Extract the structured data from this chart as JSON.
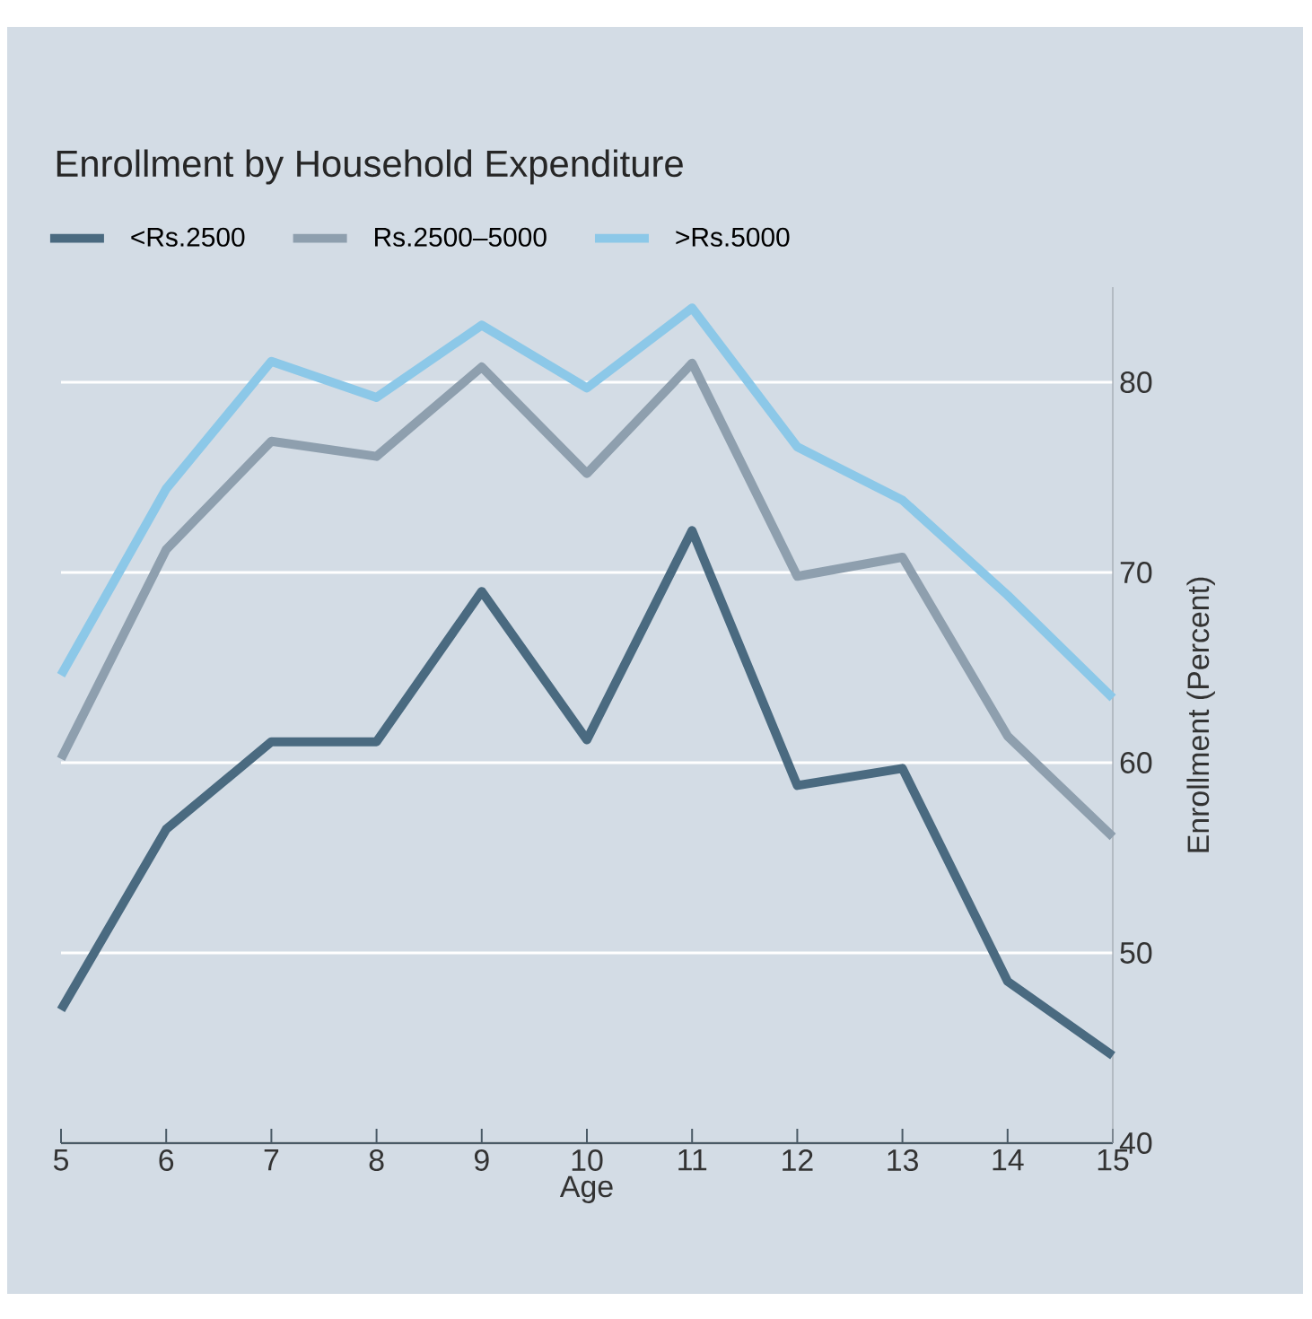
{
  "chart_data": {
    "type": "line",
    "title": "Enrollment by Household Expenditure",
    "xlabel": "Age",
    "ylabel": "Enrollment (Percent)",
    "x": [
      5,
      6,
      7,
      8,
      9,
      10,
      11,
      12,
      13,
      14,
      15
    ],
    "series": [
      {
        "name": "<Rs.2500",
        "color": "#4a6a80",
        "values": [
          47.0,
          56.5,
          61.1,
          61.1,
          69.0,
          61.2,
          72.2,
          58.8,
          59.7,
          48.5,
          44.6
        ]
      },
      {
        "name": "Rs.2500–5000",
        "color": "#8e9fae",
        "values": [
          60.2,
          71.2,
          76.9,
          76.1,
          80.8,
          75.2,
          81.0,
          69.8,
          70.8,
          61.4,
          56.1
        ]
      },
      {
        "name": ">Rs.5000",
        "color": "#8cc8e8",
        "values": [
          64.6,
          74.4,
          81.1,
          79.2,
          83.0,
          79.7,
          83.9,
          76.6,
          73.8,
          68.8,
          63.4
        ]
      }
    ],
    "xlim": [
      5,
      15
    ],
    "ylim": [
      40,
      85
    ],
    "xticks": [
      5,
      6,
      7,
      8,
      9,
      10,
      11,
      12,
      13,
      14,
      15
    ],
    "yticks": [
      40,
      50,
      60,
      70,
      80
    ],
    "grid": "y",
    "legend": "top",
    "marker": "none",
    "line_style": "solid"
  }
}
